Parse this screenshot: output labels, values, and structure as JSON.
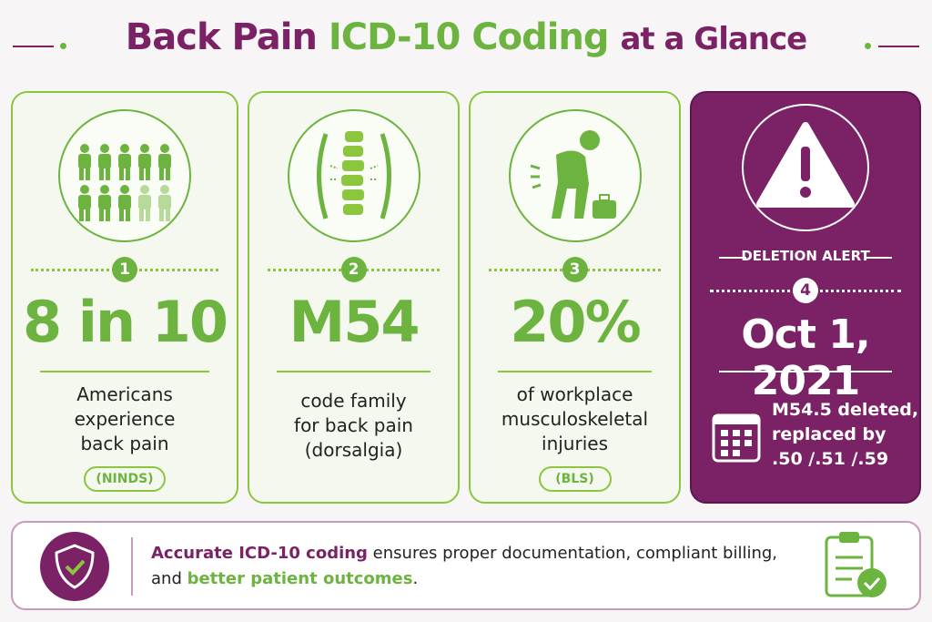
{
  "header": {
    "title_part1": "Back Pain",
    "title_part2": "ICD-10 Coding",
    "title_part3": "at a Glance"
  },
  "cards": [
    {
      "number": "1",
      "stat": "8 in 10",
      "description": [
        "Americans",
        "experience",
        "back pain"
      ],
      "source": "(NINDS)"
    },
    {
      "number": "2",
      "stat": "M54",
      "description": [
        "code family",
        "for back pain",
        "(dorsalgia)"
      ]
    },
    {
      "number": "3",
      "stat": "20%",
      "description": [
        "of workplace",
        "musculoskeletal",
        "injuries"
      ],
      "source": "(BLS)"
    },
    {
      "label": "DELETION ALERT",
      "number": "4",
      "stat": "Oct 1, 2021",
      "description": [
        "M54.5 deleted,",
        "replaced by",
        ".50 /.51 /.59"
      ]
    }
  ],
  "footer": {
    "segments": [
      "Accurate ICD-10 coding",
      " ensures proper documentation, compliant billing,",
      "and ",
      "better patient outcomes",
      "."
    ]
  }
}
